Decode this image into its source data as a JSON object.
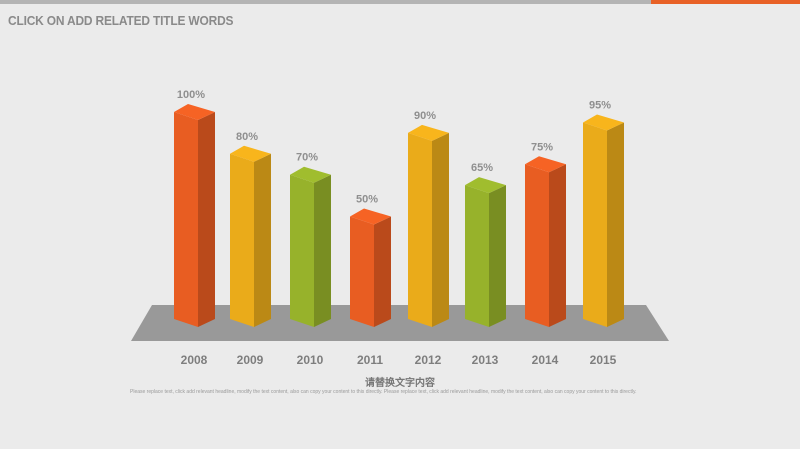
{
  "header": {
    "title": "CLICK ON ADD RELATED TITLE WORDS",
    "colors": {
      "bar_gray": "#b4b4b4",
      "bar_accent": "#e86126"
    }
  },
  "chart_data": {
    "type": "bar",
    "title": "",
    "xlabel": "",
    "ylabel": "",
    "categories": [
      "2008",
      "2009",
      "2010",
      "2011",
      "2012",
      "2013",
      "2014",
      "2015"
    ],
    "values": [
      100,
      80,
      70,
      50,
      90,
      65,
      75,
      95
    ],
    "data_labels": [
      "100%",
      "80%",
      "70%",
      "50%",
      "90%",
      "65%",
      "75%",
      "95%"
    ],
    "unit": "%",
    "ylim": [
      0,
      100
    ],
    "grid": false,
    "legend": "none",
    "style": "3d-columns",
    "bar_colors": [
      "#e85d22",
      "#eaab1a",
      "#97b22b",
      "#e85d22",
      "#eaab1a",
      "#97b22b",
      "#e85d22",
      "#eaab1a"
    ],
    "subtitle": "请替换文字内容",
    "caption": "Please replace text, click add relevant headline, modify the text content, also can copy your content to this directly. Please replace text, click add relevant headline, modify the text content, also can copy your content to this directly."
  }
}
